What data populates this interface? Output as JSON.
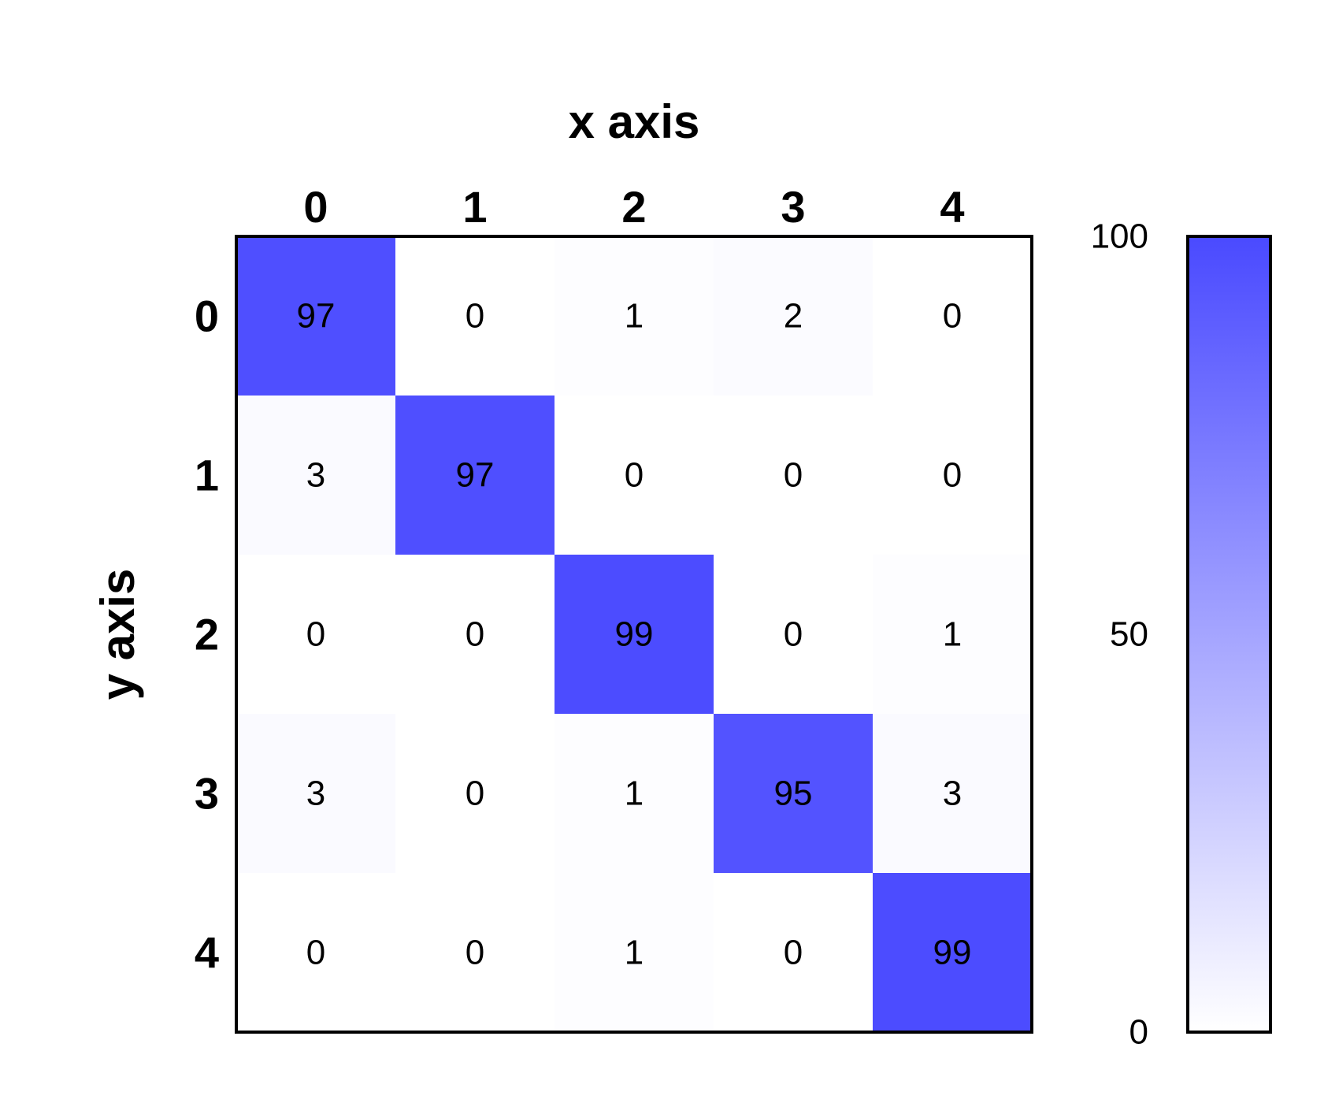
{
  "chart_data": {
    "type": "heatmap",
    "title": "",
    "xlabel": "x axis",
    "ylabel": "y axis",
    "x_categories": [
      "0",
      "1",
      "2",
      "3",
      "4"
    ],
    "y_categories": [
      "0",
      "1",
      "2",
      "3",
      "4"
    ],
    "values": [
      [
        97,
        0,
        1,
        2,
        0
      ],
      [
        3,
        97,
        0,
        0,
        0
      ],
      [
        0,
        0,
        99,
        0,
        1
      ],
      [
        3,
        0,
        1,
        95,
        3
      ],
      [
        0,
        0,
        1,
        0,
        99
      ]
    ],
    "colorbar": {
      "min": 0,
      "max": 100,
      "ticks": [
        "0",
        "50",
        "100"
      ],
      "color_low": "#ffffff",
      "color_high": "#4a4aff"
    },
    "x_ticks_position": "top",
    "grid": false
  }
}
